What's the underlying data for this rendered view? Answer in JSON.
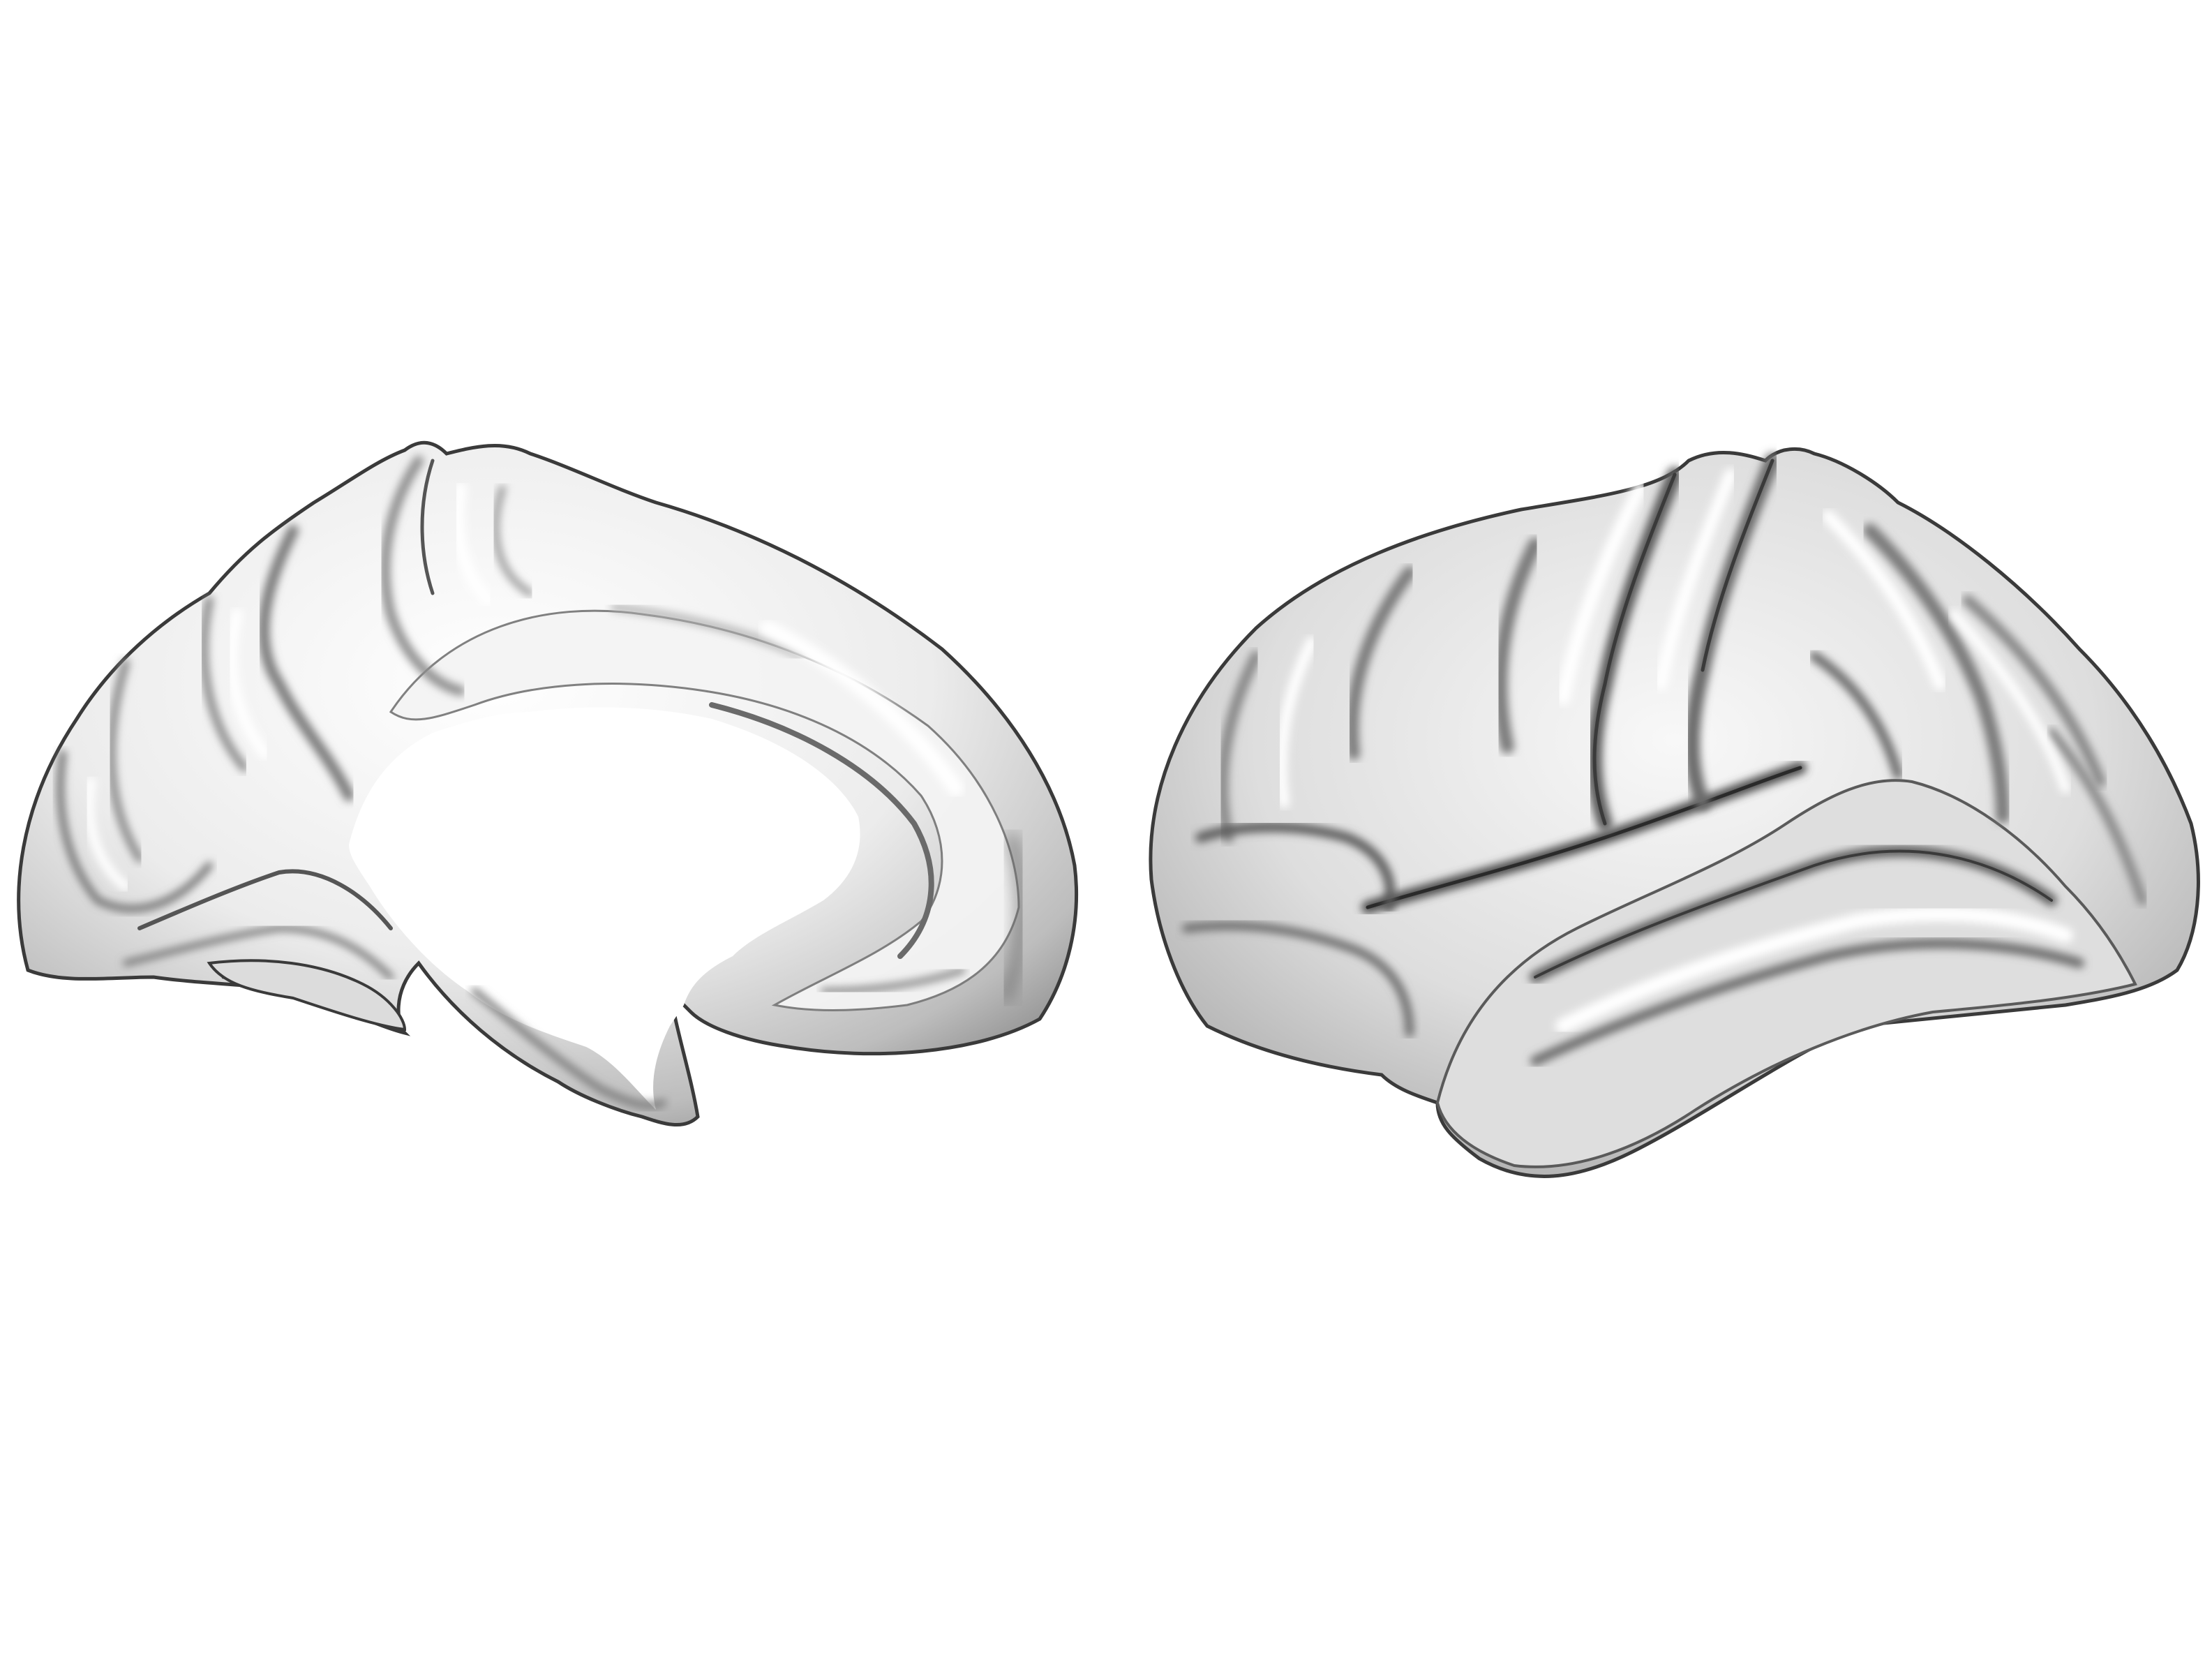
{
  "scene": {
    "background_color": "#ffffff",
    "surface_color": "#e6e6e6",
    "shadow_color": "#6a6a6a",
    "edge_color": "#3a3a3a",
    "views": [
      {
        "view": "medial"
      },
      {
        "view": "lateral"
      }
    ]
  }
}
